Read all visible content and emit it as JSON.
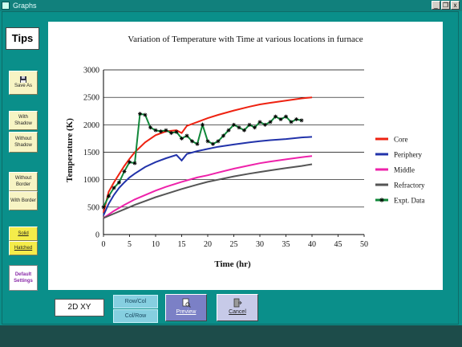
{
  "window": {
    "title": "Graphs",
    "min_btn": "_",
    "restore_btn": "❐",
    "close_btn": "x"
  },
  "sidebar": {
    "tips_label": "Tips",
    "save_label": "Save As",
    "with_shadow_label": "With Shadow",
    "without_shadow_label": "Without Shadow",
    "without_border_label": "Without Border",
    "with_border_label": "With Border",
    "solid_label": "Solid",
    "hatched_label": "Hatched",
    "default_settings_label": "Default Settings"
  },
  "bottom": {
    "mode_label": "2D XY",
    "rowcol_label": "Row/Col",
    "colrow_label": "Col/Row",
    "preview_label": "Preview",
    "cancel_label": "Cancel"
  },
  "chart_data": {
    "type": "line",
    "title": "Variation of Temperature with Time at various locations in furnace",
    "xlabel": "Time (hr)",
    "ylabel": "Temperature (K)",
    "xlim": [
      0,
      50
    ],
    "ylim": [
      0,
      3000
    ],
    "xticks": [
      0,
      5,
      10,
      15,
      20,
      25,
      30,
      35,
      40,
      45,
      50
    ],
    "yticks": [
      0,
      500,
      1000,
      1500,
      2000,
      2500,
      3000
    ],
    "grid": true,
    "legend_position": "right",
    "series": [
      {
        "name": "Core",
        "color": "#ee2211",
        "marker": "none",
        "x": [
          0,
          1,
          2,
          3,
          4,
          5,
          6,
          8,
          10,
          12,
          14,
          15,
          16,
          18,
          20,
          22,
          25,
          28,
          30,
          32,
          35,
          38,
          40
        ],
        "y": [
          400,
          780,
          950,
          1100,
          1250,
          1380,
          1500,
          1680,
          1810,
          1880,
          1900,
          1850,
          1980,
          2050,
          2120,
          2180,
          2260,
          2330,
          2370,
          2400,
          2440,
          2480,
          2500
        ]
      },
      {
        "name": "Periphery",
        "color": "#2233aa",
        "marker": "none",
        "x": [
          0,
          1,
          2,
          3,
          4,
          5,
          6,
          8,
          10,
          12,
          14,
          15,
          16,
          18,
          20,
          22,
          25,
          28,
          30,
          32,
          35,
          38,
          40
        ],
        "y": [
          350,
          560,
          720,
          850,
          950,
          1040,
          1110,
          1230,
          1320,
          1390,
          1450,
          1350,
          1470,
          1520,
          1560,
          1600,
          1640,
          1680,
          1700,
          1720,
          1740,
          1770,
          1780
        ]
      },
      {
        "name": "Middle",
        "color": "#ee22aa",
        "marker": "none",
        "x": [
          0,
          2,
          4,
          6,
          8,
          10,
          12,
          15,
          18,
          20,
          22,
          25,
          28,
          30,
          32,
          35,
          38,
          40
        ],
        "y": [
          300,
          430,
          540,
          640,
          720,
          800,
          870,
          960,
          1040,
          1080,
          1130,
          1200,
          1260,
          1300,
          1330,
          1370,
          1410,
          1430
        ]
      },
      {
        "name": "Refractory",
        "color": "#555555",
        "marker": "none",
        "x": [
          0,
          2,
          4,
          6,
          8,
          10,
          12,
          15,
          18,
          20,
          22,
          25,
          28,
          30,
          32,
          35,
          38,
          40
        ],
        "y": [
          300,
          380,
          460,
          540,
          610,
          680,
          740,
          830,
          910,
          960,
          1000,
          1060,
          1110,
          1140,
          1170,
          1210,
          1250,
          1280
        ]
      },
      {
        "name": "Expt. Data",
        "color": "#11883a",
        "marker": "star",
        "x": [
          0,
          1,
          2,
          3,
          4,
          5,
          6,
          7,
          8,
          9,
          10,
          11,
          12,
          13,
          14,
          15,
          16,
          17,
          18,
          19,
          20,
          21,
          22,
          23,
          24,
          25,
          26,
          27,
          28,
          29,
          30,
          31,
          32,
          33,
          34,
          35,
          36,
          37,
          38
        ],
        "y": [
          500,
          700,
          850,
          950,
          1150,
          1320,
          1300,
          2200,
          2180,
          1950,
          1900,
          1880,
          1900,
          1850,
          1870,
          1750,
          1800,
          1700,
          1650,
          2000,
          1700,
          1650,
          1700,
          1800,
          1900,
          2000,
          1950,
          1900,
          2000,
          1950,
          2050,
          2000,
          2050,
          2150,
          2100,
          2150,
          2050,
          2100,
          2080
        ]
      }
    ]
  }
}
